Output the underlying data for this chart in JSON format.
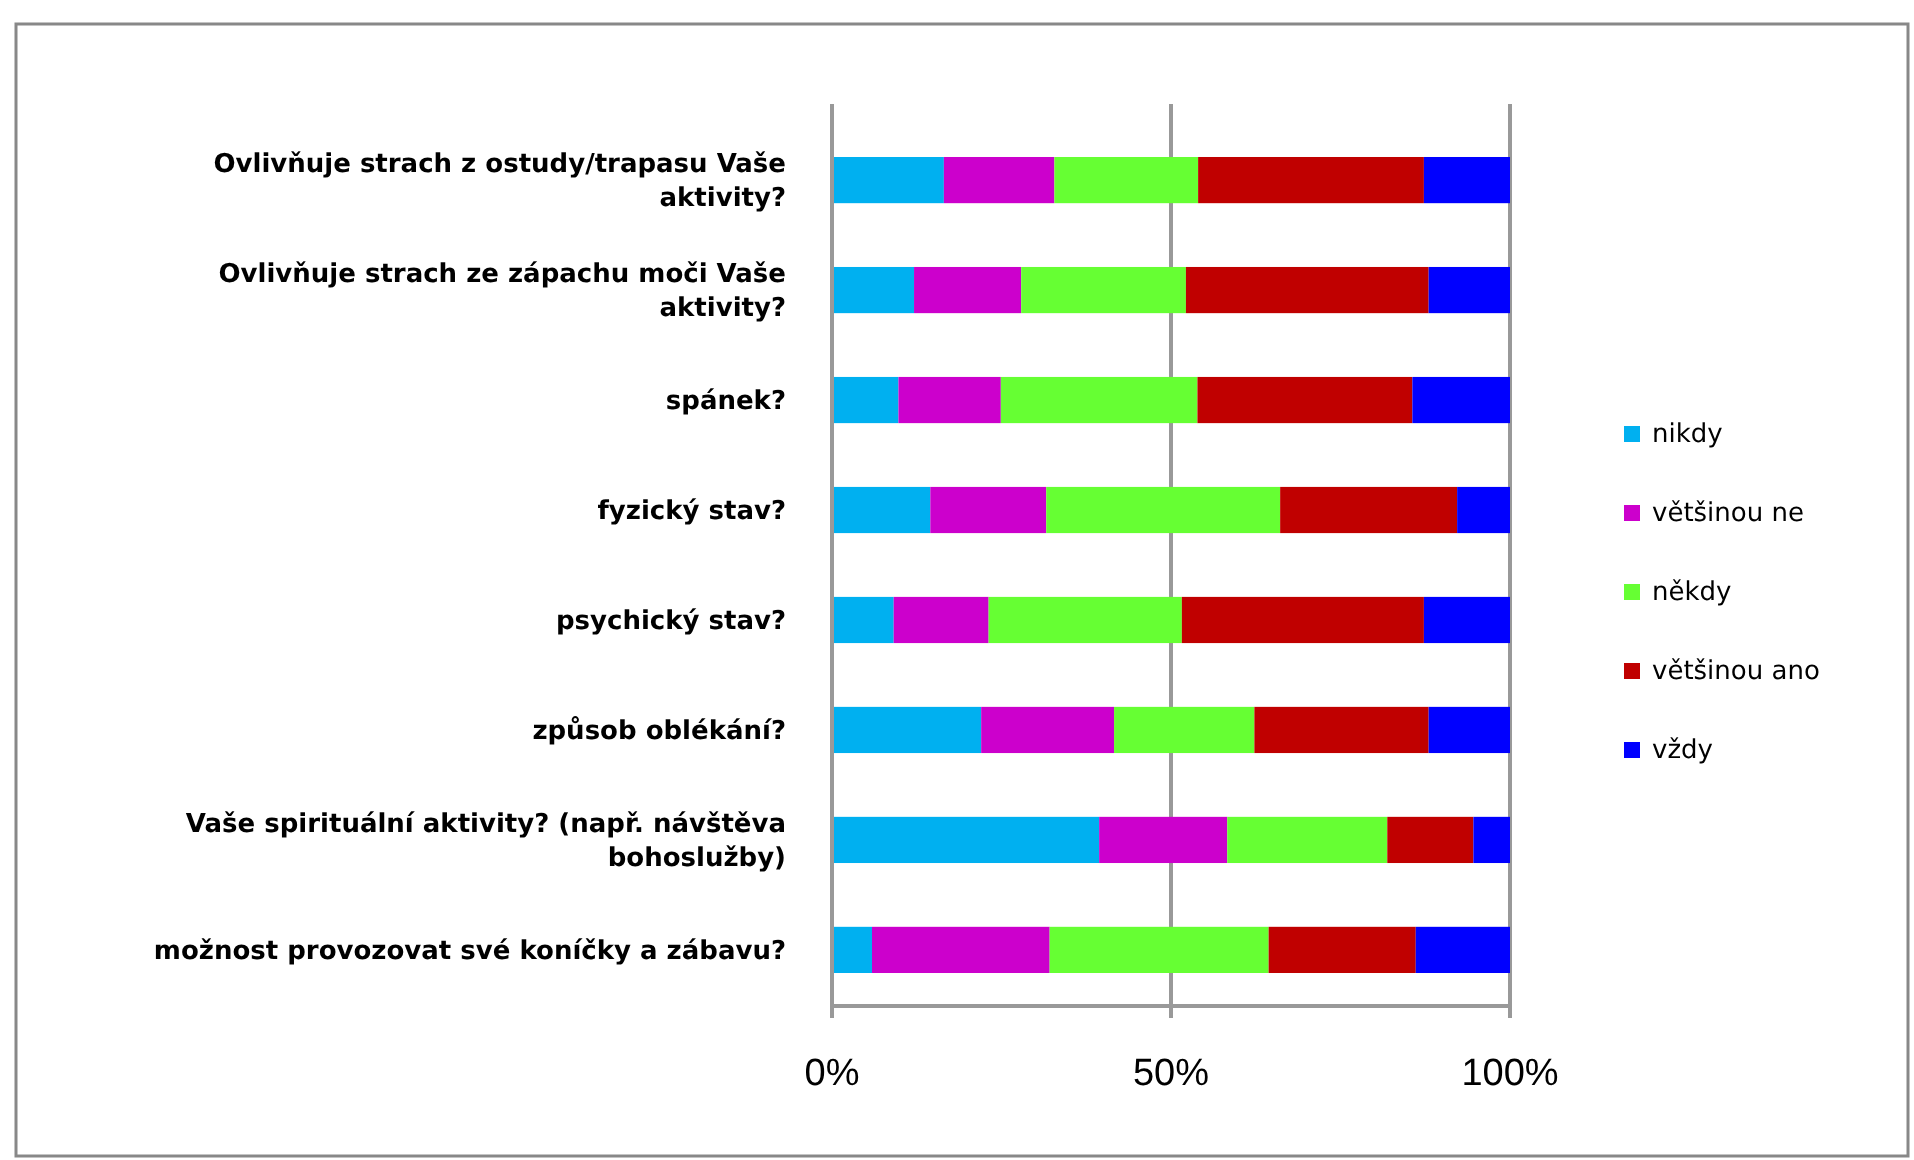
{
  "chart_data": {
    "type": "bar",
    "orientation": "horizontal",
    "stacked": true,
    "categories": [
      "Ovlivňuje strach z ostudy/trapasu Vaše aktivity?",
      "Ovlivňuje strach ze zápachu moči Vaše aktivity?",
      "spánek?",
      "fyzický stav?",
      "psychický stav?",
      "způsob oblékání?",
      "Vaše spirituální aktivity? (např. návštěva bohoslužby)",
      "možnost provozovat své koníčky a zábavu?"
    ],
    "series": [
      {
        "name": "nikdy",
        "color": "#00b0f0",
        "values": [
          16.5,
          12.1,
          9.8,
          14.5,
          9.1,
          22.0,
          39.4,
          5.9
        ]
      },
      {
        "name": "většinou ne",
        "color": "#cc00cc",
        "values": [
          16.3,
          15.8,
          15.1,
          17.1,
          14.0,
          19.6,
          18.9,
          26.2
        ]
      },
      {
        "name": "někdy",
        "color": "#66ff33",
        "values": [
          21.2,
          24.3,
          29.0,
          34.5,
          28.5,
          20.7,
          23.6,
          32.3
        ]
      },
      {
        "name": "většinou ano",
        "color": "#c00000",
        "values": [
          33.3,
          35.8,
          31.7,
          26.1,
          35.7,
          25.7,
          12.7,
          21.7
        ]
      },
      {
        "name": "vždy",
        "color": "#0000ff",
        "values": [
          12.7,
          12.0,
          14.4,
          7.8,
          12.7,
          12.0,
          5.4,
          13.9
        ]
      }
    ],
    "xlim": [
      0,
      100
    ],
    "xticks": [
      {
        "value": 0,
        "label": "0%"
      },
      {
        "value": 50,
        "label": "50%"
      },
      {
        "value": 100,
        "label": "100%"
      }
    ],
    "grid": "x",
    "legend": "right"
  }
}
